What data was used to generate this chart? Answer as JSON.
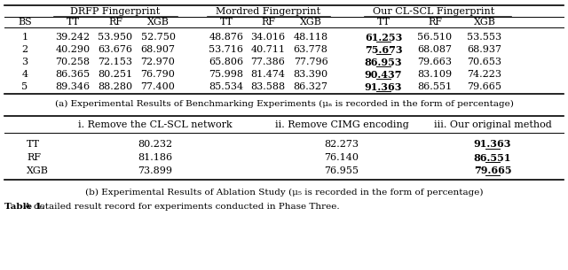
{
  "table_a": {
    "group_headers": [
      "DRFP Fingerprint",
      "Mordred Fingerprint",
      "Our CL-SCL Fingerprint"
    ],
    "col_headers": [
      "BS",
      "TT",
      "RF",
      "XGB",
      "TT",
      "RF",
      "XGB",
      "TT",
      "RF",
      "XGB"
    ],
    "rows": [
      [
        "1",
        "39.242",
        "53.950",
        "52.750",
        "48.876",
        "34.016",
        "48.118",
        "61.253",
        "56.510",
        "53.553"
      ],
      [
        "2",
        "40.290",
        "63.676",
        "68.907",
        "53.716",
        "40.711",
        "63.778",
        "75.673",
        "68.087",
        "68.937"
      ],
      [
        "3",
        "70.258",
        "72.153",
        "72.970",
        "65.806",
        "77.386",
        "77.796",
        "86.953",
        "79.663",
        "70.653"
      ],
      [
        "4",
        "86.365",
        "80.251",
        "76.790",
        "75.998",
        "81.474",
        "83.390",
        "90.437",
        "83.109",
        "74.223"
      ],
      [
        "5",
        "89.346",
        "88.280",
        "77.400",
        "85.534",
        "83.588",
        "86.327",
        "91.363",
        "86.551",
        "79.665"
      ]
    ],
    "bold_underline_col": 7,
    "caption_plain": "(a) Experimental Results of Benchmarking Experiments (",
    "caption_mu": "μ",
    "caption_sub": "N",
    "caption_end": " is recorded in the form of percentage)"
  },
  "table_b": {
    "col_headers": [
      "",
      "i. Remove the CL-SCL network",
      "ii. Remove CIMG encoding",
      "iii. Our original method"
    ],
    "rows": [
      [
        "TT",
        "80.232",
        "82.273",
        "91.363"
      ],
      [
        "RF",
        "81.186",
        "76.140",
        "86.551"
      ],
      [
        "XGB",
        "73.899",
        "76.955",
        "79.665"
      ]
    ],
    "bold_underline_col": 3,
    "caption_plain": "(b) Experimental Results of Ablation Study (",
    "caption_mu": "μ",
    "caption_sub": "5",
    "caption_end": " is recorded in the form of percentage)"
  },
  "footer_bold": "Table 1.",
  "footer_rest": " A detailed result record for experiments conducted in Phase Three.",
  "bg_color": "#ffffff",
  "line_color": "#000000",
  "text_color": "#000000",
  "fontsize": 8.0
}
